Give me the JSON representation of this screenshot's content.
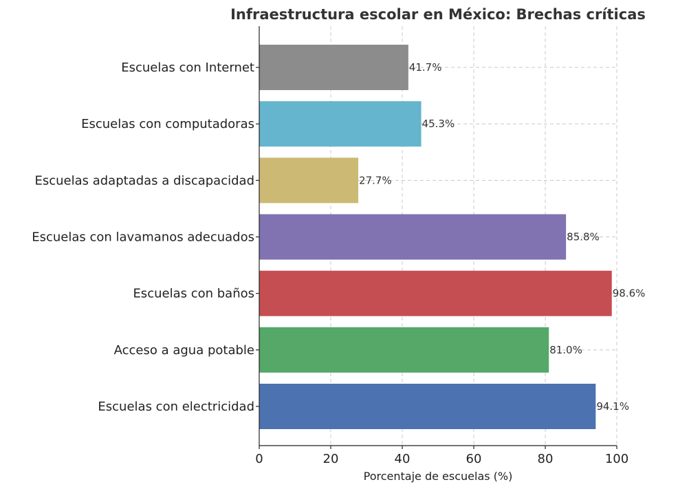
{
  "chart_data": {
    "type": "bar",
    "orientation": "horizontal",
    "title": "Infraestructura escolar en México: Brechas críticas",
    "xlabel": "Porcentaje de escuelas (%)",
    "ylabel": "",
    "xlim": [
      0,
      100
    ],
    "xticks": [
      0,
      20,
      40,
      60,
      80,
      100
    ],
    "grid": true,
    "categories": [
      "Escuelas con electricidad",
      "Acceso a agua potable",
      "Escuelas con baños",
      "Escuelas con lavamanos adecuados",
      "Escuelas adaptadas a discapacidad",
      "Escuelas con computadoras",
      "Escuelas con Internet"
    ],
    "values": [
      94.1,
      81.0,
      98.6,
      85.8,
      27.7,
      45.3,
      41.7
    ],
    "value_labels": [
      "94.1%",
      "81.0%",
      "98.6%",
      "85.8%",
      "27.7%",
      "45.3%",
      "41.7%"
    ],
    "colors": [
      "#4c72b0",
      "#55a868",
      "#c44e52",
      "#8172b2",
      "#ccb974",
      "#64b5cd",
      "#8c8c8c"
    ]
  }
}
